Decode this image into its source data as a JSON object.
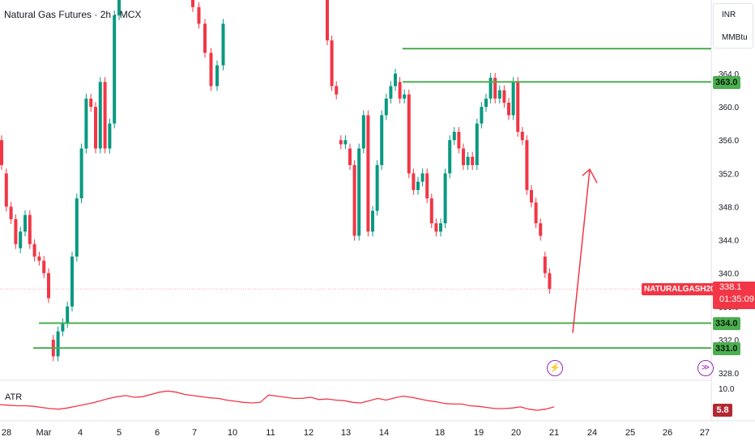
{
  "header": {
    "title": "Natural Gas Futures · 2h · MCX"
  },
  "units": {
    "currency": "INR",
    "unit": "MMBtu"
  },
  "levels": [
    {
      "label": "363.0",
      "value": 363.0
    },
    {
      "label": "334.0",
      "value": 334.0
    },
    {
      "label": "331.0",
      "value": 331.0
    }
  ],
  "top_level_value": 367.0,
  "price_tag": {
    "symbol": "NATURALGASH2025",
    "price": "338.1",
    "countdown": "01:35:09",
    "value": 338.1
  },
  "atr": {
    "label": "ATR",
    "value": "5.8",
    "axis_labels": [
      "10.0",
      "5.8"
    ]
  },
  "colors": {
    "up": "#089981",
    "down": "#f23645",
    "level": "#4caf50",
    "arrow": "#f23645",
    "atr": "#f23645",
    "event": "#9c27b0"
  },
  "icons": {
    "event": "lightning-icon",
    "scroll": "go-to-realtime-icon"
  },
  "chart_data": {
    "type": "candlestick",
    "title": "Natural Gas Futures · 2h · MCX",
    "y_ticks": [
      "328.0",
      "332.0",
      "336.0",
      "340.0",
      "344.0",
      "348.0",
      "352.0",
      "356.0",
      "360.0",
      "364.0"
    ],
    "x_ticks": [
      "28",
      "Mar",
      "4",
      "5",
      "6",
      "7",
      "10",
      "11",
      "12",
      "13",
      "14",
      "18",
      "19",
      "20",
      "21",
      "24",
      "25",
      "26",
      "27"
    ],
    "ylim": [
      327,
      374
    ],
    "candles": [
      [
        356.0,
        353.0
      ],
      [
        352.0,
        348.0
      ],
      [
        348.0,
        346.5
      ],
      [
        346.5,
        343.5
      ],
      [
        343.0,
        345.0
      ],
      [
        345.0,
        347.0
      ],
      [
        347.0,
        343.5
      ],
      [
        343.5,
        342.0
      ],
      [
        342.0,
        341.5
      ],
      [
        341.5,
        340.0
      ],
      [
        340.0,
        337.0
      ],
      [
        332.0,
        330.0
      ],
      [
        330.0,
        333.0
      ],
      [
        333.0,
        334.0
      ],
      [
        334.0,
        336.0
      ],
      [
        336.0,
        342.0
      ],
      [
        342.0,
        349.0
      ],
      [
        349.0,
        355.0
      ],
      [
        355.0,
        361.0
      ],
      [
        361.0,
        360.0
      ],
      [
        360.0,
        355.0
      ],
      [
        355.0,
        363.0
      ],
      [
        363.0,
        355.0
      ],
      [
        355.0,
        358.0
      ],
      [
        358.0,
        371.0
      ],
      [
        371.0,
        378.0
      ]
    ],
    "candles_mid": [
      [
        376.0,
        372.0
      ],
      [
        372.0,
        370.0
      ],
      [
        370.0,
        366.5
      ],
      [
        366.5,
        362.5
      ],
      [
        362.5,
        365.0
      ],
      [
        365.0,
        370.0
      ]
    ],
    "candles_late": [
      [
        376.0,
        368.0
      ],
      [
        368.0,
        362.5
      ],
      [
        362.5,
        361.5
      ],
      [
        356.0,
        355.5
      ],
      [
        355.5,
        356.0
      ],
      [
        355.0,
        353.0
      ],
      [
        353.0,
        344.5
      ],
      [
        344.5,
        355.0
      ],
      [
        355.0,
        359.0
      ],
      [
        359.0,
        345.0
      ],
      [
        345.0,
        347.5
      ],
      [
        347.5,
        353.0
      ],
      [
        353.0,
        359.0
      ],
      [
        359.0,
        361.0
      ],
      [
        361.0,
        362.5
      ],
      [
        362.5,
        364.0
      ],
      [
        363.0,
        361.0
      ],
      [
        361.0,
        361.5
      ],
      [
        361.5,
        352.0
      ],
      [
        352.0,
        350.0
      ],
      [
        350.0,
        351.0
      ],
      [
        351.0,
        352.0
      ],
      [
        352.0,
        349.0
      ],
      [
        349.0,
        346.0
      ],
      [
        346.0,
        345.0
      ],
      [
        345.0,
        346.0
      ],
      [
        346.0,
        352.0
      ],
      [
        352.0,
        356.0
      ],
      [
        356.0,
        357.0
      ],
      [
        357.0,
        355.0
      ],
      [
        355.0,
        353.0
      ],
      [
        353.0,
        354.0
      ],
      [
        354.0,
        353.0
      ],
      [
        353.0,
        358.0
      ],
      [
        358.0,
        360.0
      ],
      [
        360.0,
        361.0
      ],
      [
        361.0,
        363.5
      ],
      [
        363.5,
        361.0
      ],
      [
        361.0,
        362.0
      ],
      [
        362.0,
        360.5
      ],
      [
        360.5,
        359.0
      ],
      [
        359.0,
        363.0
      ],
      [
        363.0,
        357.0
      ],
      [
        357.0,
        356.0
      ],
      [
        356.0,
        350.0
      ],
      [
        350.0,
        348.5
      ],
      [
        348.5,
        346.0
      ],
      [
        346.0,
        344.5
      ],
      [
        342.0,
        340.0
      ],
      [
        340.0,
        338.1
      ]
    ],
    "arrow": {
      "from": 334.0,
      "to": 352.5
    },
    "atr_series": [
      6.2,
      6.1,
      6.0,
      6.0,
      5.9,
      5.7,
      5.5,
      5.4,
      5.6,
      5.9,
      6.2,
      6.5,
      6.9,
      7.3,
      7.6,
      7.8,
      7.5,
      7.6,
      8.0,
      8.4,
      8.6,
      8.4,
      8.0,
      7.8,
      7.6,
      7.4,
      7.3,
      7.0,
      6.8,
      6.6,
      6.5,
      6.6,
      7.9,
      7.7,
      7.5,
      7.3,
      7.3,
      7.5,
      7.1,
      7.2,
      7.0,
      6.9,
      6.6,
      6.5,
      6.9,
      7.3,
      7.0,
      7.4,
      7.7,
      7.5,
      7.2,
      6.9,
      6.7,
      6.4,
      6.3,
      6.3,
      6.0,
      5.9,
      5.7,
      5.5,
      5.5,
      5.6,
      5.8,
      5.4,
      5.2,
      5.4,
      5.8
    ]
  }
}
